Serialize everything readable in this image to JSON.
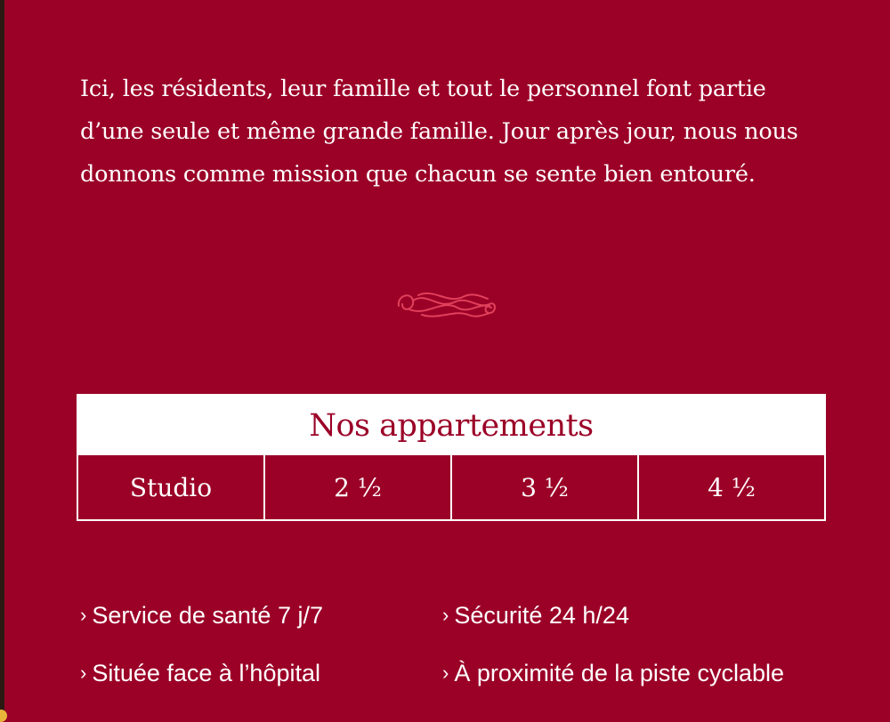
{
  "intro": {
    "text": "Ici, les résidents, leur famille et tout le personnel font partie d’une seule et même grande famille. Jour après jour, nous nous donnons comme mission que chacun se sente bien entouré."
  },
  "ornament": {
    "icon": "flourish-ornament-icon",
    "color": "#e0405a"
  },
  "apartments": {
    "title": "Nos appartements",
    "types": [
      "Studio",
      "2 ½",
      "3 ½",
      "4 ½"
    ]
  },
  "features": {
    "bullet": "›",
    "items": [
      "Service de santé 7 j/7",
      "Sécurité 24 h/24",
      "Située face à l’hôpital",
      "À proximité de la piste cyclable"
    ]
  },
  "colors": {
    "background": "#9b0027",
    "text": "#ffffff",
    "accent": "#e0405a"
  }
}
